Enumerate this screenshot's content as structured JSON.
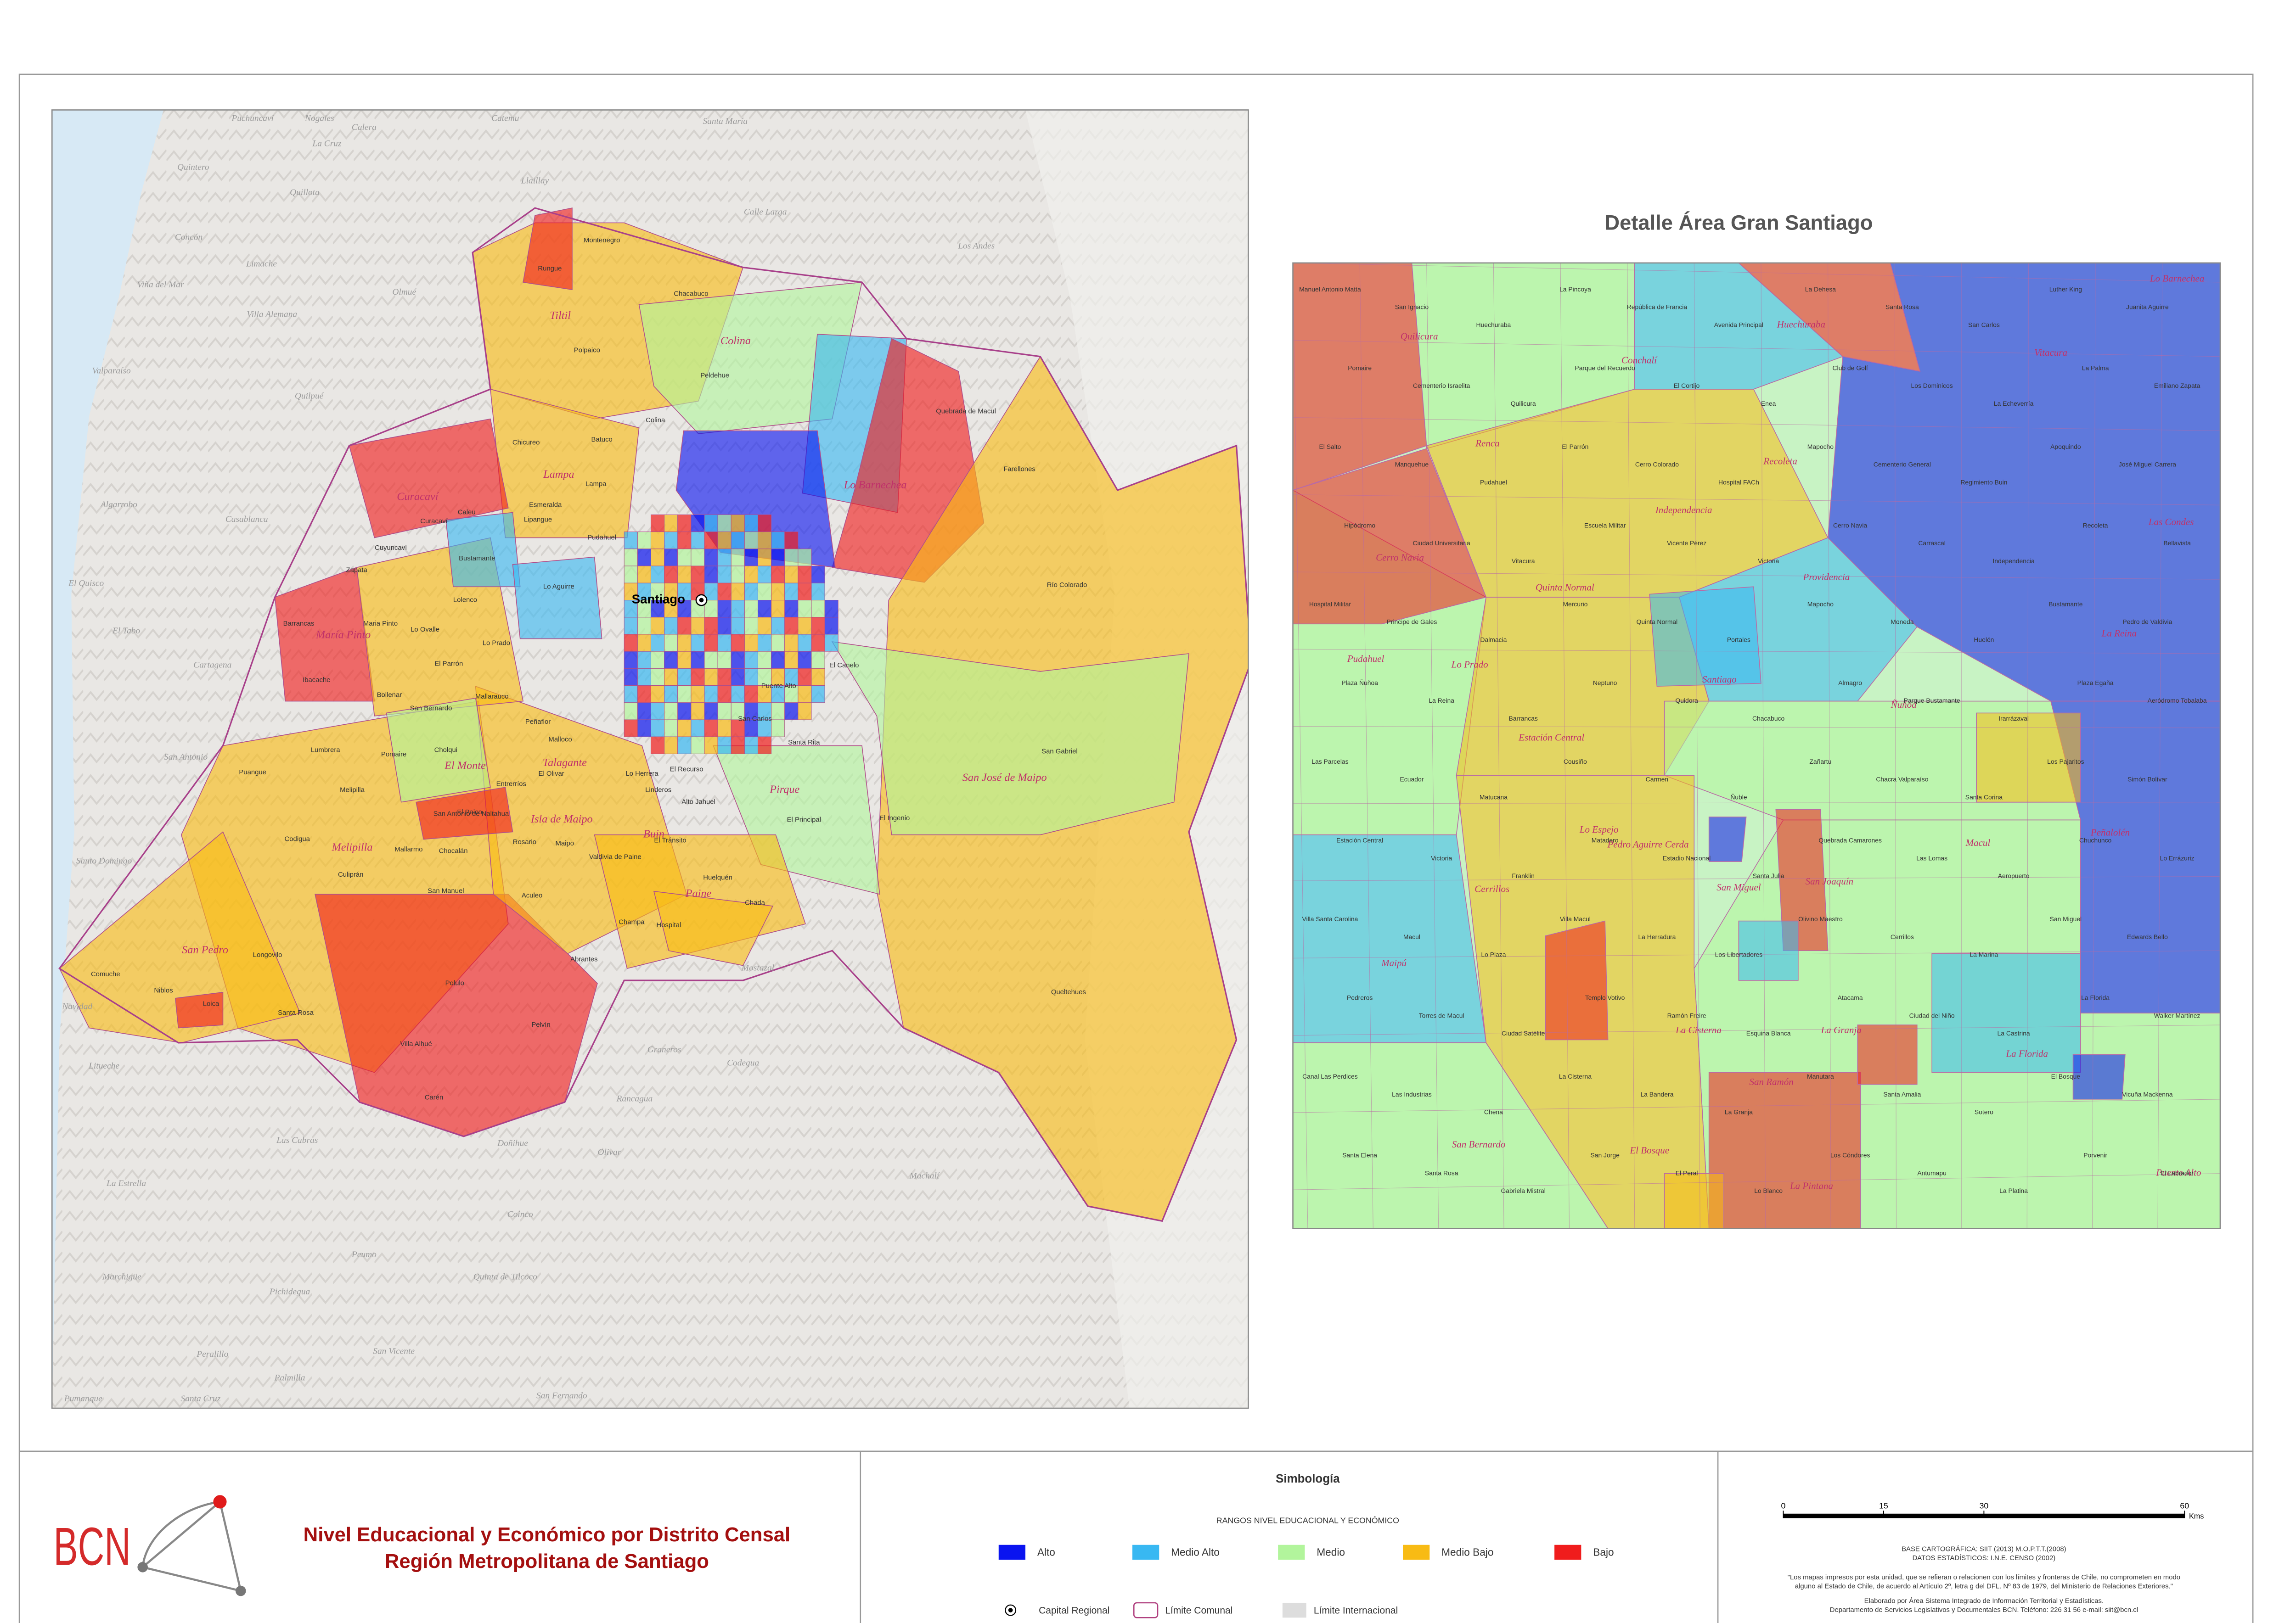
{
  "header": {
    "logo": "BCN",
    "title_line1": "Nivel Educacional y Económico por Distrito Censal",
    "title_line2": "Región Metropolitana de Santiago"
  },
  "detail_title": "Detalle Área Gran Santiago",
  "capital": "Santiago",
  "legend": {
    "title": "Simbología",
    "subtitle": "RANGOS NIVEL EDUCACIONAL Y ECONÓMICO",
    "ranges": [
      {
        "label": "Alto",
        "color": "#0a14f0"
      },
      {
        "label": "Medio Alto",
        "color": "#38b8f2"
      },
      {
        "label": "Medio",
        "color": "#b2f59c"
      },
      {
        "label": "Medio Bajo",
        "color": "#f8bb14"
      },
      {
        "label": "Bajo",
        "color": "#f01c1c"
      }
    ],
    "symbols": [
      "Capital Regional",
      "Límite Comunal",
      "Límite Internacional"
    ]
  },
  "scale": {
    "ticks": [
      0,
      15,
      30,
      60
    ],
    "unit": "Kms"
  },
  "notes": [
    "BASE CARTOGRÁFICA: SIIT (2013) M.O.P.T.T.(2008)",
    "DATOS ESTADÍSTICOS: I.N.E. CENSO (2002)",
    "\"Los mapas impresos por esta unidad, que se refieran o relacionen con los límites y fronteras de Chile, no comprometen en modo",
    "alguno al Estado de Chile, de acuerdo al Artículo 2º, letra g del DFL. Nº 83 de 1979, del Ministerio de Relaciones Exteriores.\"",
    "Elaborado por Área Sistema Integrado de Información Territorial y Estadísticas.",
    "Departamento de Servicios Legislativos y Documentales BCN. Teléfono: 226 31 56 e-mail: siit@bcn.cl"
  ],
  "left_map": {
    "places": [
      "Puchuncaví",
      "Nogales",
      "Calera",
      "Catemu",
      "Santa María",
      "Quintero",
      "La Cruz",
      "Quillota",
      "Llaillay",
      "Concón",
      "Limache",
      "Olmué",
      "Calle Larga",
      "Los Andes",
      "Viña del Mar",
      "Villa Alemana",
      "Quilpué",
      "Valparaíso",
      "Casablanca",
      "Algarrobo",
      "El Quisco",
      "El Tabo",
      "Cartagena",
      "San Antonio",
      "Santo Domingo",
      "Navidad",
      "Litueche",
      "Las Cabras",
      "Graneros",
      "Codegua",
      "Rancagua",
      "Olivar",
      "Machalí",
      "La Estrella",
      "Coinco",
      "Peumo",
      "Marchigüe",
      "Pichidegua",
      "Quinta de Tilcoco",
      "San Vicente",
      "Peralillo",
      "Palmilla",
      "Pumanque",
      "Santa Cruz",
      "San Fernando",
      "Mostazal",
      "Doñihue"
    ],
    "regions": [
      "Tiltil",
      "Colina",
      "Lampa",
      "Curacaví",
      "Lo Barnechea",
      "María Pinto",
      "El Monte",
      "Talagante",
      "Isla de Maipo",
      "Melipilla",
      "Buin",
      "Paine",
      "Pirque",
      "San José de Maipo",
      "San Pedro"
    ],
    "comunas": [
      "Montenegro",
      "Rungue",
      "Chacabuco",
      "Polpaico",
      "Batuco",
      "Colina",
      "Peldehue",
      "Chicureo",
      "Lampa",
      "Caleu",
      "Esmeralda",
      "Lipangue",
      "Pudahuel",
      "Curacaví",
      "Cuyuncaví",
      "Bustamante",
      "Lo Aguirre",
      "Zapata",
      "Lolenco",
      "El Parrón",
      "Lo Prado",
      "Barrancas",
      "Ibacache",
      "Maria Pinto",
      "Lo Ovalle",
      "Mallarauco",
      "San Bernardo",
      "Bollenar",
      "Pomaire",
      "Lumbrera",
      "Melipilla",
      "Codigua",
      "Culiprán",
      "Chocalán",
      "Mallarmo",
      "Puangue",
      "Comuche",
      "Niblos",
      "Loica",
      "Longovilo",
      "Santa Rosa",
      "Cholqui",
      "San Manuel",
      "Pelvín",
      "Polulo",
      "Villa Alhué",
      "Carén",
      "Aculeo",
      "Champa",
      "Hospital",
      "Abrantes",
      "Huelquén",
      "Chada",
      "El Principal",
      "El Ingenio",
      "San Gabriel",
      "Quebrada de Macul",
      "Farellones",
      "Río Colorado",
      "Queltehues",
      "El Canelo",
      "San Carlos",
      "Santa Rita",
      "Linderos",
      "Valdivia de Paine",
      "El Tránsito",
      "Rosario",
      "Maipo",
      "El Recurso",
      "Alto Jahuel",
      "Puente Alto",
      "Lo Herrera",
      "Malloco",
      "Peñaflor",
      "El Olivar",
      "Entrerríos",
      "El Paico",
      "San Antonio de Naltahua"
    ]
  },
  "right_map": {
    "regions": [
      "Quilicura",
      "Huechuraba",
      "Conchalí",
      "Renca",
      "Recoleta",
      "Independencia",
      "Vitacura",
      "Lo Barnechea",
      "Las Condes",
      "Cerro Navia",
      "Quinta Normal",
      "Providencia",
      "Pudahuel",
      "Lo Prado",
      "La Reina",
      "Ñuñoa",
      "Estación Central",
      "Santiago",
      "Peñalolén",
      "Macul",
      "Pedro Aguirre Cerda",
      "Lo Espejo",
      "San Miguel",
      "San Joaquín",
      "Cerrillos",
      "Maipú",
      "La Cisterna",
      "La Granja",
      "La Florida",
      "San Ramón",
      "El Bosque",
      "La Pintana",
      "San Bernardo",
      "Puente Alto"
    ],
    "comunas": [
      "Manuel Antonio Matta",
      "San Ignacio",
      "Huechuraba",
      "La Pincoya",
      "República de Francia",
      "Avenida Principal",
      "La Dehesa",
      "Santa Rosa",
      "San Carlos",
      "Luther King",
      "Juanita Aguirre",
      "Pomaire",
      "Cementerio Israelita",
      "Quilicura",
      "Parque del Recuerdo",
      "El Cortijo",
      "Enea",
      "Club de Golf",
      "Los Dominicos",
      "La Echeverría",
      "La Palma",
      "Emiliano Zapata",
      "El Salto",
      "Manquehue",
      "Pudahuel",
      "El Parrón",
      "Cerro Colorado",
      "Hospital FACh",
      "Mapocho",
      "Cementerio General",
      "Regimiento Buin",
      "Apoquindo",
      "José Miguel Carrera",
      "Hipódromo",
      "Ciudad Universitaria",
      "Vitacura",
      "Escuela Militar",
      "Vicente Pérez",
      "Victoria",
      "Cerro Navia",
      "Carrascal",
      "Independencia",
      "Recoleta",
      "Bellavista",
      "Hospital Militar",
      "Principe de Gales",
      "Dalmacia",
      "Mercurio",
      "Quinta Normal",
      "Portales",
      "Mapocho",
      "Moneda",
      "Huelén",
      "Bustamante",
      "Pedro de Valdivia",
      "Plaza Ñuñoa",
      "La Reina",
      "Barrancas",
      "Neptuno",
      "Quidora",
      "Chacabuco",
      "Almagro",
      "Parque Bustamante",
      "Irarrázaval",
      "Plaza Egaña",
      "Aeródromo Tobalaba",
      "Las Parcelas",
      "Ecuador",
      "Matucana",
      "Cousiño",
      "Carmen",
      "Ñuble",
      "Zañartu",
      "Chacra Valparaíso",
      "Santa Corina",
      "Los Pajaritos",
      "Simón Bolívar",
      "Estación Central",
      "Victoria",
      "Franklin",
      "Matadero",
      "Estadio Nacional",
      "Santa Julia",
      "Quebrada Camarones",
      "Las Lomas",
      "Aeropuerto",
      "Chuchunco",
      "Lo Errázuriz",
      "Villa Santa Carolina",
      "Macul",
      "Lo Plaza",
      "Villa Macul",
      "La Herradura",
      "Los Libertadores",
      "Olivino Maestro",
      "Cerrillos",
      "La Marina",
      "San Miguel",
      "Edwards Bello",
      "Pedreros",
      "Torres de Macul",
      "Ciudad Satélite",
      "Templo Votivo",
      "Ramón Freire",
      "Esquina Blanca",
      "Atacama",
      "Ciudad del Niño",
      "La Castrina",
      "La Florida",
      "Walker Martínez",
      "Canal Las Perdices",
      "Las Industrias",
      "Chena",
      "La Cisterna",
      "La Bandera",
      "La Granja",
      "Manutara",
      "Santa Amalia",
      "Sotero",
      "El Bosque",
      "Vicuña Mackenna",
      "Santa Elena",
      "Santa Rosa",
      "Gabriela Mistral",
      "San Jorge",
      "El Peral",
      "Lo Blanco",
      "Los Cóndores",
      "Antumapu",
      "La Platina",
      "Porvenir",
      "El Labrador",
      "Los Jardines"
    ]
  }
}
